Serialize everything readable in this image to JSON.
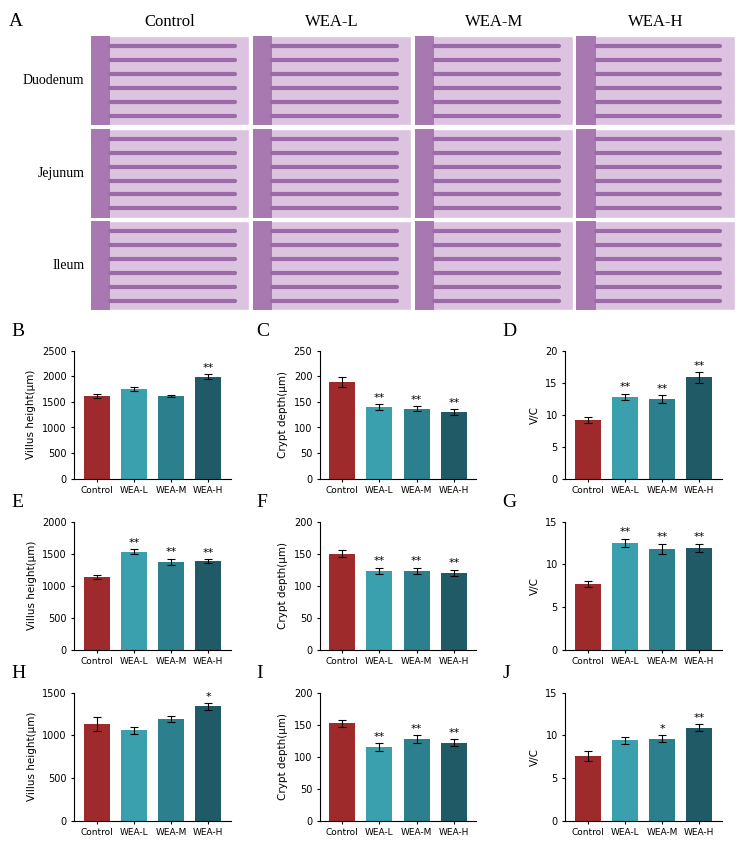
{
  "image_panel": {
    "panel_label": "A",
    "columns": [
      "Control",
      "WEA-L",
      "WEA-M",
      "WEA-H"
    ],
    "rows": [
      "Duodenum",
      "Jejunum",
      "Ileum"
    ]
  },
  "chart_data": [
    {
      "type": "bar",
      "panel_label": "B",
      "ylabel": "Villus height(μm)",
      "categories": [
        "Control",
        "WEA-L",
        "WEA-M",
        "WEA-H"
      ],
      "values": [
        1620,
        1750,
        1610,
        1990
      ],
      "errors": [
        40,
        30,
        20,
        50
      ],
      "annotations": [
        null,
        null,
        null,
        "**"
      ],
      "colors": [
        "#9E2A2B",
        "#3AA0AE",
        "#2C7F8C",
        "#1F5A66"
      ],
      "ylim": [
        0,
        2500
      ],
      "yticks": [
        0,
        500,
        1000,
        1500,
        2000,
        2500
      ]
    },
    {
      "type": "bar",
      "panel_label": "C",
      "ylabel": "Crypt depth(μm)",
      "categories": [
        "Control",
        "WEA-L",
        "WEA-M",
        "WEA-H"
      ],
      "values": [
        188,
        140,
        137,
        130
      ],
      "errors": [
        10,
        5,
        5,
        6
      ],
      "annotations": [
        null,
        "**",
        "**",
        "**"
      ],
      "colors": [
        "#9E2A2B",
        "#3AA0AE",
        "#2C7F8C",
        "#1F5A66"
      ],
      "ylim": [
        0,
        250
      ],
      "yticks": [
        0,
        50,
        100,
        150,
        200,
        250
      ]
    },
    {
      "type": "bar",
      "panel_label": "D",
      "ylabel": "V/C",
      "categories": [
        "Control",
        "WEA-L",
        "WEA-M",
        "WEA-H"
      ],
      "values": [
        9.2,
        12.8,
        12.4,
        15.8
      ],
      "errors": [
        0.5,
        0.5,
        0.6,
        0.8
      ],
      "annotations": [
        null,
        "**",
        "**",
        "**"
      ],
      "colors": [
        "#9E2A2B",
        "#3AA0AE",
        "#2C7F8C",
        "#1F5A66"
      ],
      "ylim": [
        0,
        20
      ],
      "yticks": [
        0,
        5,
        10,
        15,
        20
      ]
    },
    {
      "type": "bar",
      "panel_label": "E",
      "ylabel": "Villus height(μm)",
      "categories": [
        "Control",
        "WEA-L",
        "WEA-M",
        "WEA-H"
      ],
      "values": [
        1140,
        1530,
        1370,
        1380
      ],
      "errors": [
        30,
        40,
        50,
        30
      ],
      "annotations": [
        null,
        "**",
        "**",
        "**"
      ],
      "colors": [
        "#9E2A2B",
        "#3AA0AE",
        "#2C7F8C",
        "#1F5A66"
      ],
      "ylim": [
        0,
        2000
      ],
      "yticks": [
        0,
        500,
        1000,
        1500,
        2000
      ]
    },
    {
      "type": "bar",
      "panel_label": "F",
      "ylabel": "Crypt depth(μm)",
      "categories": [
        "Control",
        "WEA-L",
        "WEA-M",
        "WEA-H"
      ],
      "values": [
        150,
        123,
        123,
        120
      ],
      "errors": [
        6,
        5,
        5,
        5
      ],
      "annotations": [
        null,
        "**",
        "**",
        "**"
      ],
      "colors": [
        "#9E2A2B",
        "#3AA0AE",
        "#2C7F8C",
        "#1F5A66"
      ],
      "ylim": [
        0,
        200
      ],
      "yticks": [
        0,
        50,
        100,
        150,
        200
      ]
    },
    {
      "type": "bar",
      "panel_label": "G",
      "ylabel": "V/C",
      "categories": [
        "Control",
        "WEA-L",
        "WEA-M",
        "WEA-H"
      ],
      "values": [
        7.7,
        12.5,
        11.8,
        11.9
      ],
      "errors": [
        0.3,
        0.5,
        0.6,
        0.5
      ],
      "annotations": [
        null,
        "**",
        "**",
        "**"
      ],
      "colors": [
        "#9E2A2B",
        "#3AA0AE",
        "#2C7F8C",
        "#1F5A66"
      ],
      "ylim": [
        0,
        15
      ],
      "yticks": [
        0,
        5,
        10,
        15
      ]
    },
    {
      "type": "bar",
      "panel_label": "H",
      "ylabel": "Villus height(μm)",
      "categories": [
        "Control",
        "WEA-L",
        "WEA-M",
        "WEA-H"
      ],
      "values": [
        1130,
        1060,
        1190,
        1340
      ],
      "errors": [
        80,
        40,
        30,
        40
      ],
      "annotations": [
        null,
        null,
        null,
        "*"
      ],
      "colors": [
        "#9E2A2B",
        "#3AA0AE",
        "#2C7F8C",
        "#1F5A66"
      ],
      "ylim": [
        0,
        1500
      ],
      "yticks": [
        0,
        500,
        1000,
        1500
      ]
    },
    {
      "type": "bar",
      "panel_label": "I",
      "ylabel": "Crypt depth(μm)",
      "categories": [
        "Control",
        "WEA-L",
        "WEA-M",
        "WEA-H"
      ],
      "values": [
        152,
        115,
        128,
        122
      ],
      "errors": [
        5,
        6,
        6,
        5
      ],
      "annotations": [
        null,
        "**",
        "**",
        "**"
      ],
      "colors": [
        "#9E2A2B",
        "#3AA0AE",
        "#2C7F8C",
        "#1F5A66"
      ],
      "ylim": [
        0,
        200
      ],
      "yticks": [
        0,
        50,
        100,
        150,
        200
      ]
    },
    {
      "type": "bar",
      "panel_label": "J",
      "ylabel": "V/C",
      "categories": [
        "Control",
        "WEA-L",
        "WEA-M",
        "WEA-H"
      ],
      "values": [
        7.6,
        9.4,
        9.6,
        10.9
      ],
      "errors": [
        0.6,
        0.4,
        0.4,
        0.4
      ],
      "annotations": [
        null,
        null,
        "*",
        "**"
      ],
      "colors": [
        "#9E2A2B",
        "#3AA0AE",
        "#2C7F8C",
        "#1F5A66"
      ],
      "ylim": [
        0,
        15
      ],
      "yticks": [
        0,
        5,
        10,
        15
      ]
    }
  ]
}
